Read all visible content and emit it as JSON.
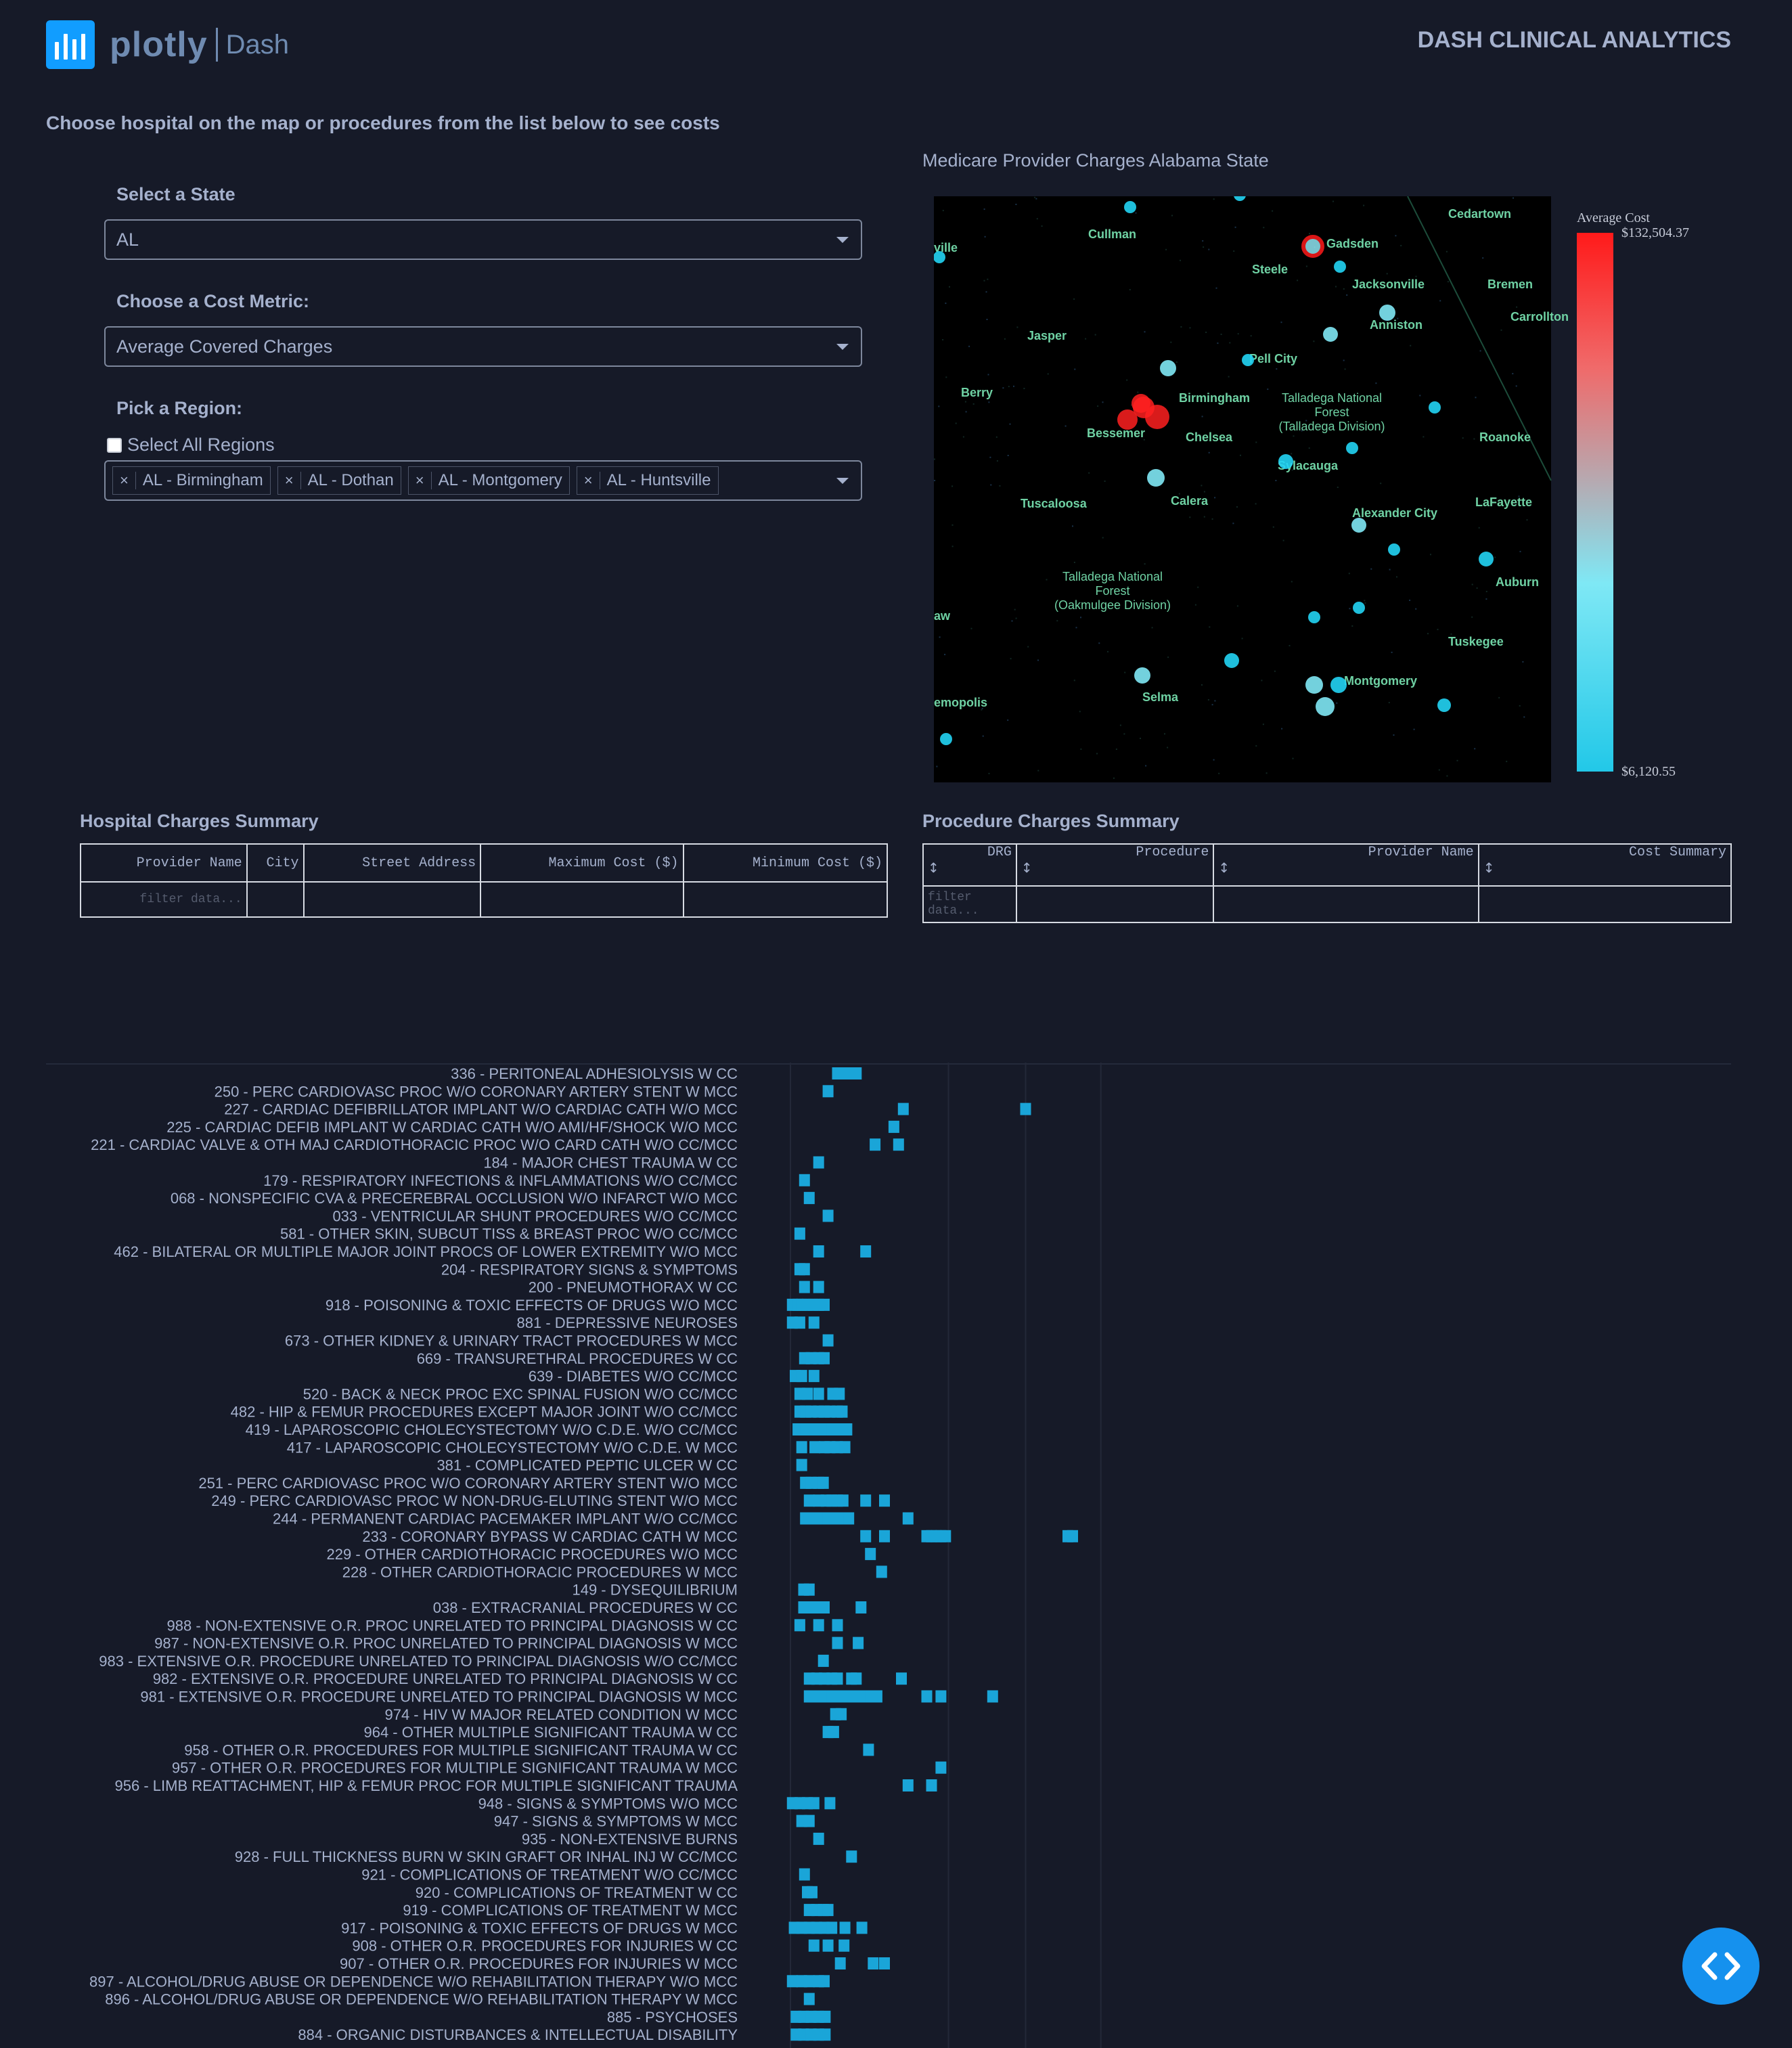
{
  "header": {
    "logo_text": "plotly",
    "logo_sub": "Dash",
    "title": "DASH CLINICAL ANALYTICS"
  },
  "instructions": "Choose hospital on the map or procedures from the list below to see costs",
  "controls": {
    "state_label": "Select a State",
    "state_value": "AL",
    "metric_label": "Choose a Cost Metric:",
    "metric_value": "Average Covered Charges",
    "region_label": "Pick a Region:",
    "select_all_label": "Select All Regions",
    "select_all_checked": false,
    "regions": [
      "AL - Birmingham",
      "AL - Dothan",
      "AL - Montgomery",
      "AL - Huntsville"
    ]
  },
  "map": {
    "title": "Medicare Provider Charges Alabama State",
    "colorbar_title": "Average Cost",
    "colorbar_max": "$132,504.37",
    "colorbar_min": "$6,120.55",
    "colors": {
      "low": "#22d4f4",
      "mid": "#7fe8f5",
      "high": "#ff2020"
    },
    "places": [
      "Cullman",
      "Gadsden",
      "Cedartown",
      "Steele",
      "Jacksonville",
      "Bremen",
      "Carrollton",
      "Anniston",
      "Jasper",
      "Pell City",
      "Berry",
      "Birmingham",
      "Talladega National Forest (Talladega Division)",
      "Bessemer",
      "Chelsea",
      "Roanoke",
      "Sylacauga",
      "Tuscaloosa",
      "Calera",
      "Alexander City",
      "LaFayette",
      "Talladega National Forest (Oakmulgee Division)",
      "Auburn",
      "Tuskegee",
      "Montgomery",
      "Selma",
      "emopolis",
      "ville",
      "aw"
    ]
  },
  "hospital_table": {
    "title": "Hospital Charges Summary",
    "columns": [
      "Provider Name",
      "City",
      "Street Address",
      "Maximum Cost ($)",
      "Minimum Cost ($)"
    ],
    "filter_placeholder": "filter data..."
  },
  "procedure_table": {
    "title": "Procedure Charges Summary",
    "columns": [
      "DRG",
      "Procedure",
      "Provider Name",
      "Cost Summary"
    ],
    "sort_glyph": "↕",
    "filter_placeholder": "filter data..."
  },
  "chart_data": {
    "type": "scatter",
    "title": "",
    "xlabel": "",
    "ylabel": "",
    "color": "#1aa5d8",
    "categories": [
      "336 - PERITONEAL ADHESIOLYSIS W CC",
      "250 - PERC CARDIOVASC PROC W/O CORONARY ARTERY STENT W MCC",
      "227 - CARDIAC DEFIBRILLATOR IMPLANT W/O CARDIAC CATH W/O MCC",
      "225 - CARDIAC DEFIB IMPLANT W CARDIAC CATH W/O AMI/HF/SHOCK W/O MCC",
      "221 - CARDIAC VALVE & OTH MAJ CARDIOTHORACIC PROC W/O CARD CATH W/O CC/MCC",
      "184 - MAJOR CHEST TRAUMA W CC",
      "179 - RESPIRATORY INFECTIONS & INFLAMMATIONS W/O CC/MCC",
      "068 - NONSPECIFIC CVA & PRECEREBRAL OCCLUSION W/O INFARCT W/O MCC",
      "033 - VENTRICULAR SHUNT PROCEDURES W/O CC/MCC",
      "581 - OTHER SKIN, SUBCUT TISS & BREAST PROC W/O CC/MCC",
      "462 - BILATERAL OR MULTIPLE MAJOR JOINT PROCS OF LOWER EXTREMITY W/O MCC",
      "204 - RESPIRATORY SIGNS & SYMPTOMS",
      "200 - PNEUMOTHORAX W CC",
      "918 - POISONING & TOXIC EFFECTS OF DRUGS W/O MCC",
      "881 - DEPRESSIVE NEUROSES",
      "673 - OTHER KIDNEY & URINARY TRACT PROCEDURES W MCC",
      "669 - TRANSURETHRAL PROCEDURES W CC",
      "639 - DIABETES W/O CC/MCC",
      "520 - BACK & NECK PROC EXC SPINAL FUSION W/O CC/MCC",
      "482 - HIP & FEMUR PROCEDURES EXCEPT MAJOR JOINT W/O CC/MCC",
      "419 - LAPAROSCOPIC CHOLECYSTECTOMY W/O C.D.E. W/O CC/MCC",
      "417 - LAPAROSCOPIC CHOLECYSTECTOMY W/O C.D.E. W MCC",
      "381 - COMPLICATED PEPTIC ULCER W CC",
      "251 - PERC CARDIOVASC PROC W/O CORONARY ARTERY STENT W/O MCC",
      "249 - PERC CARDIOVASC PROC W NON-DRUG-ELUTING STENT W/O MCC",
      "244 - PERMANENT CARDIAC PACEMAKER IMPLANT W/O CC/MCC",
      "233 - CORONARY BYPASS W CARDIAC CATH W MCC",
      "229 - OTHER CARDIOTHORACIC PROCEDURES W/O MCC",
      "228 - OTHER CARDIOTHORACIC PROCEDURES W MCC",
      "149 - DYSEQUILIBRIUM",
      "038 - EXTRACRANIAL PROCEDURES W CC",
      "988 - NON-EXTENSIVE O.R. PROC UNRELATED TO PRINCIPAL DIAGNOSIS W CC",
      "987 - NON-EXTENSIVE O.R. PROC UNRELATED TO PRINCIPAL DIAGNOSIS W MCC",
      "983 - EXTENSIVE O.R. PROCEDURE UNRELATED TO PRINCIPAL DIAGNOSIS W/O CC/MCC",
      "982 - EXTENSIVE O.R. PROCEDURE UNRELATED TO PRINCIPAL DIAGNOSIS W CC",
      "981 - EXTENSIVE O.R. PROCEDURE UNRELATED TO PRINCIPAL DIAGNOSIS W MCC",
      "974 - HIV W MAJOR RELATED CONDITION W MCC",
      "964 - OTHER MULTIPLE SIGNIFICANT TRAUMA W CC",
      "958 - OTHER O.R. PROCEDURES FOR MULTIPLE SIGNIFICANT TRAUMA W CC",
      "957 - OTHER O.R. PROCEDURES FOR MULTIPLE SIGNIFICANT TRAUMA W MCC",
      "956 - LIMB REATTACHMENT, HIP & FEMUR PROC FOR MULTIPLE SIGNIFICANT TRAUMA",
      "948 - SIGNS & SYMPTOMS W/O MCC",
      "947 - SIGNS & SYMPTOMS W MCC",
      "935 - NON-EXTENSIVE BURNS",
      "928 - FULL THICKNESS BURN W SKIN GRAFT OR INHAL INJ W CC/MCC",
      "921 - COMPLICATIONS OF TREATMENT W/O CC/MCC",
      "920 - COMPLICATIONS OF TREATMENT W CC",
      "919 - COMPLICATIONS OF TREATMENT W MCC",
      "917 - POISONING & TOXIC EFFECTS OF DRUGS W MCC",
      "908 - OTHER O.R. PROCEDURES FOR INJURIES W CC",
      "907 - OTHER O.R. PROCEDURES FOR INJURIES W MCC",
      "897 - ALCOHOL/DRUG ABUSE OR DEPENDENCE W/O REHABILITATION THERAPY W/O MCC",
      "896 - ALCOHOL/DRUG ABUSE OR DEPENDENCE W/O REHABILITATION THERAPY W MCC",
      "885 - PSYCHOSES",
      "884 - ORGANIC DISTURBANCES & INTELLECTUAL DISABILITY"
    ],
    "points": [
      [
        0.05,
        0.06,
        0.07
      ],
      [
        0.04
      ],
      [
        0.12,
        0.25
      ],
      [
        0.11
      ],
      [
        0.09,
        0.115
      ],
      [
        0.03
      ],
      [
        0.015
      ],
      [
        0.02
      ],
      [
        0.04
      ],
      [
        0.01
      ],
      [
        0.03,
        0.08
      ],
      [
        0.01,
        0.015
      ],
      [
        0.015,
        0.03
      ],
      [
        0.002,
        0.008,
        0.012,
        0.018,
        0.024,
        0.03,
        0.036
      ],
      [
        0.002,
        0.01,
        0.025
      ],
      [
        0.04
      ],
      [
        0.015,
        0.022,
        0.03,
        0.036
      ],
      [
        0.005,
        0.012,
        0.025
      ],
      [
        0.01,
        0.018,
        0.03,
        0.045,
        0.052
      ],
      [
        0.01,
        0.016,
        0.022,
        0.03,
        0.036,
        0.042,
        0.05,
        0.055
      ],
      [
        0.008,
        0.016,
        0.024,
        0.034,
        0.044,
        0.052,
        0.06
      ],
      [
        0.012,
        0.026,
        0.036,
        0.042,
        0.05,
        0.058
      ],
      [
        0.012
      ],
      [
        0.016,
        0.022,
        0.03,
        0.035
      ],
      [
        0.02,
        0.03,
        0.038,
        0.044,
        0.05,
        0.056,
        0.08,
        0.1
      ],
      [
        0.016,
        0.024,
        0.032,
        0.04,
        0.048,
        0.056,
        0.062,
        0.125
      ],
      [
        0.08,
        0.1,
        0.145,
        0.15,
        0.155,
        0.16,
        0.165,
        0.295,
        0.3
      ],
      [
        0.085
      ],
      [
        0.097
      ],
      [
        0.014,
        0.02
      ],
      [
        0.014,
        0.02,
        0.028,
        0.036,
        0.075
      ],
      [
        0.01,
        0.03,
        0.05
      ],
      [
        0.05,
        0.072
      ],
      [
        0.035
      ],
      [
        0.02,
        0.028,
        0.036,
        0.044,
        0.05,
        0.065,
        0.07,
        0.118
      ],
      [
        0.02,
        0.028,
        0.036,
        0.044,
        0.05,
        0.06,
        0.066,
        0.072,
        0.078,
        0.085,
        0.092,
        0.145,
        0.16,
        0.215
      ],
      [
        0.048,
        0.054
      ],
      [
        0.04,
        0.046
      ],
      [
        0.083
      ],
      [
        0.16
      ],
      [
        0.125,
        0.15
      ],
      [
        0.002,
        0.01,
        0.018,
        0.025,
        0.042
      ],
      [
        0.012,
        0.02
      ],
      [
        0.03
      ],
      [
        0.065
      ],
      [
        0.015
      ],
      [
        0.018,
        0.023
      ],
      [
        0.02,
        0.028,
        0.035,
        0.04
      ],
      [
        0.004,
        0.012,
        0.02,
        0.028,
        0.036,
        0.044,
        0.058,
        0.076
      ],
      [
        0.025,
        0.04,
        0.057
      ],
      [
        0.053,
        0.088,
        0.1
      ],
      [
        0.002,
        0.012,
        0.02,
        0.03,
        0.036
      ],
      [
        0.02
      ],
      [
        0.006,
        0.014,
        0.022,
        0.03,
        0.037
      ],
      [
        0.006,
        0.014,
        0.022,
        0.03,
        0.037
      ]
    ]
  }
}
